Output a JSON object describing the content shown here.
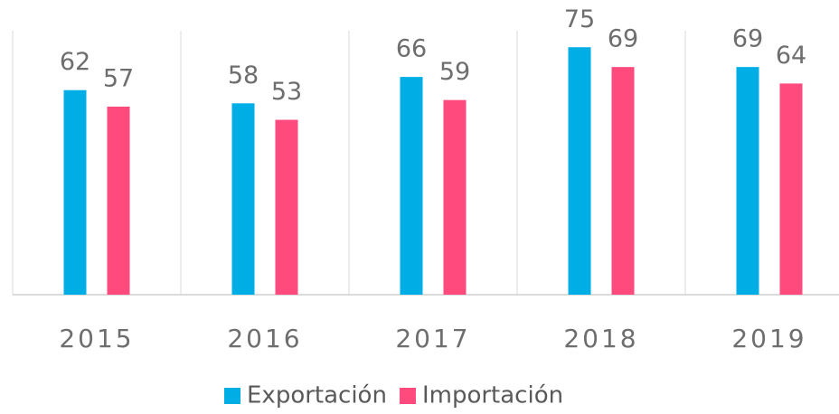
{
  "chart_data": {
    "type": "bar",
    "categories": [
      "2015",
      "2016",
      "2017",
      "2018",
      "2019"
    ],
    "series": [
      {
        "name": "Exportación",
        "color": "#00aee6",
        "values": [
          62,
          58,
          66,
          75,
          69
        ]
      },
      {
        "name": "Importación",
        "color": "#ff4a7d",
        "values": [
          57,
          53,
          59,
          69,
          64
        ]
      }
    ],
    "ylim": [
      0,
      80
    ],
    "legend": "bottom"
  }
}
